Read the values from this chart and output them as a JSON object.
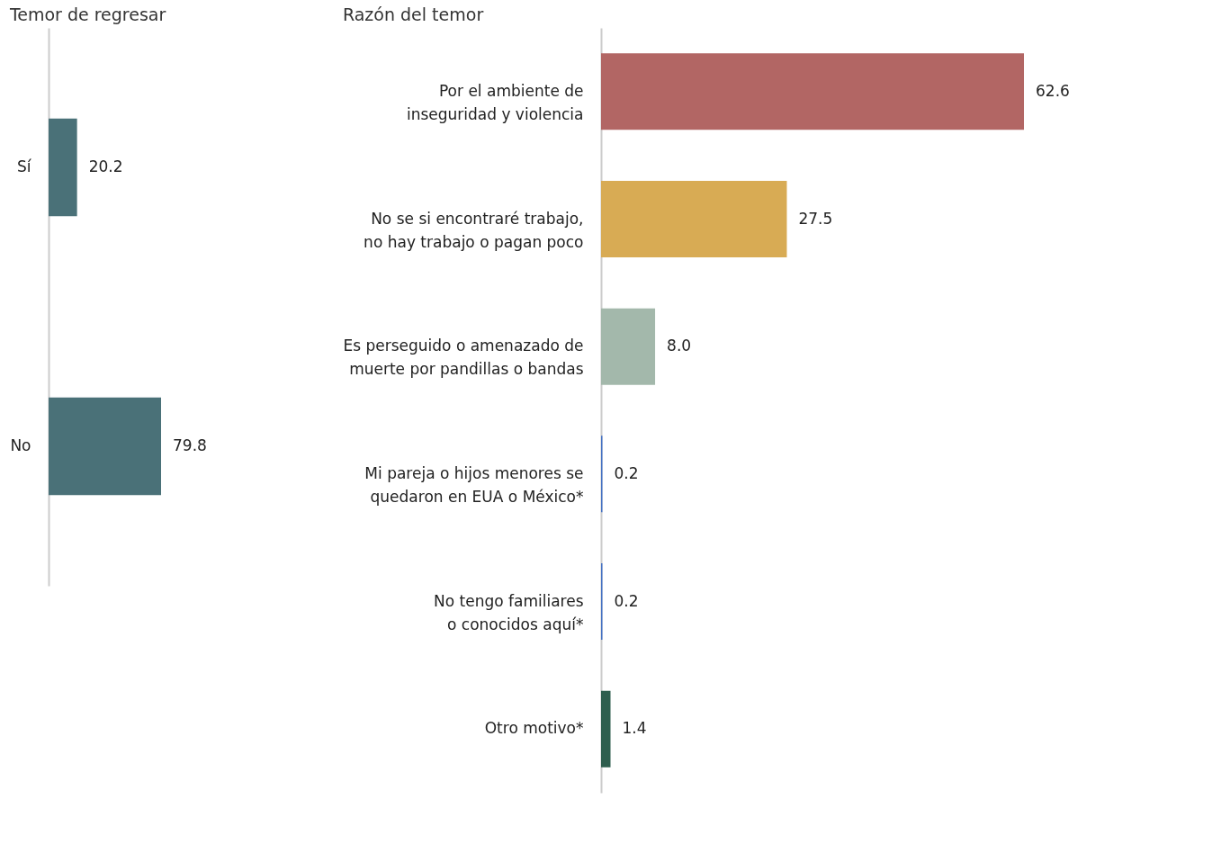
{
  "chart_data": [
    {
      "type": "bar",
      "orientation": "horizontal",
      "title": "Temor de regresar",
      "categories": [
        "Sí",
        "No"
      ],
      "values": [
        20.2,
        79.8
      ],
      "value_labels": [
        "20.2",
        "79.8"
      ],
      "colors": [
        "#4a7178",
        "#4a7178"
      ],
      "grid": false,
      "tick_labels": "y"
    },
    {
      "type": "bar",
      "orientation": "horizontal",
      "title": "Razón del temor",
      "categories": [
        "Por el ambiente de\ninseguridad y violencia",
        "No se si encontraré trabajo,\nno hay trabajo o pagan poco",
        "Es perseguido o amenazado de\nmuerte por pandillas o bandas",
        "Mi pareja o hijos menores se\nquedaron en EUA o México*",
        "No tengo familiares\no conocidos aquí*",
        "Otro motivo*"
      ],
      "values": [
        62.6,
        27.5,
        8.0,
        0.2,
        0.2,
        1.4
      ],
      "value_labels": [
        "62.6",
        "27.5",
        "8.0",
        "0.2",
        "0.2",
        "1.4"
      ],
      "colors": [
        "#b26664",
        "#d8ab54",
        "#a3b8ab",
        "#4472c4",
        "#4472c4",
        "#2e5e4e"
      ],
      "grid": false,
      "tick_labels": "y"
    }
  ]
}
